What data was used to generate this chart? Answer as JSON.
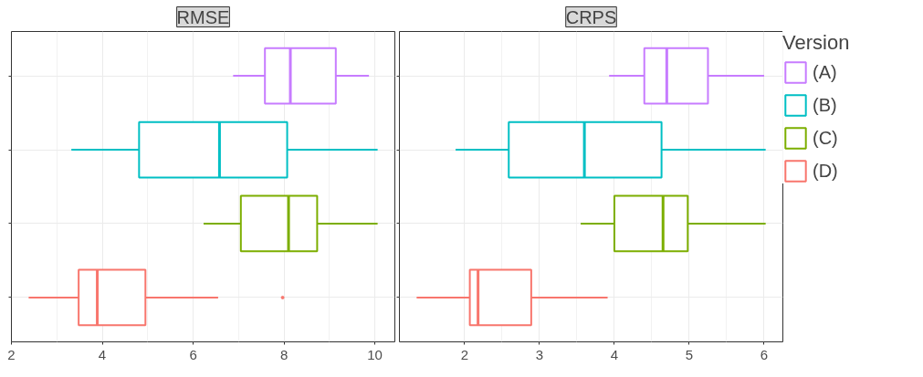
{
  "chart_data": [
    {
      "type": "box",
      "title": "RMSE",
      "orientation": "horizontal",
      "categories": [
        null,
        null,
        null,
        null
      ],
      "xlim": [
        2,
        10.44
      ],
      "xticks": [
        2,
        4,
        6,
        8,
        10
      ],
      "grid": true,
      "legend": false,
      "tick_labels": "x",
      "series": [
        {
          "color": "#c77cff",
          "boxes": [
            {
              "low": 6.88,
              "q1": 7.58,
              "median": 8.14,
              "q3": 9.14,
              "high": 9.87
            },
            null,
            null,
            null
          ]
        },
        {
          "color": "#00bfc4",
          "boxes": [
            null,
            {
              "low": 3.32,
              "q1": 4.81,
              "median": 6.58,
              "q3": 8.07,
              "high": 10.06
            },
            null,
            null
          ]
        },
        {
          "color": "#7cae00",
          "boxes": [
            null,
            null,
            {
              "low": 6.23,
              "q1": 7.05,
              "median": 8.1,
              "q3": 8.73,
              "high": 10.06
            },
            null
          ]
        },
        {
          "color": "#f8766d",
          "boxes": [
            null,
            null,
            null,
            {
              "low": 2.38,
              "q1": 3.48,
              "median": 3.89,
              "q3": 4.95,
              "high": 6.55,
              "outliers": [
                7.97
              ]
            }
          ]
        }
      ]
    },
    {
      "type": "box",
      "title": "CRPS",
      "orientation": "horizontal",
      "categories": [
        null,
        null,
        null,
        null
      ],
      "xlim": [
        1.13,
        6.25
      ],
      "xticks": [
        2,
        3,
        4,
        5,
        6
      ],
      "grid": true,
      "legend": "right",
      "legend_title": "Version",
      "tick_labels": "x",
      "series": [
        {
          "name": "(A)",
          "color": "#c77cff",
          "boxes": [
            {
              "low": 3.93,
              "q1": 4.4,
              "median": 4.7,
              "q3": 5.25,
              "high": 6.0
            },
            null,
            null,
            null
          ]
        },
        {
          "name": "(B)",
          "color": "#00bfc4",
          "boxes": [
            null,
            {
              "low": 1.88,
              "q1": 2.59,
              "median": 3.6,
              "q3": 4.63,
              "high": 6.02
            },
            null,
            null
          ]
        },
        {
          "name": "(C)",
          "color": "#7cae00",
          "boxes": [
            null,
            null,
            {
              "low": 3.55,
              "q1": 4.0,
              "median": 4.65,
              "q3": 4.98,
              "high": 6.02
            },
            null
          ]
        },
        {
          "name": "(D)",
          "color": "#f8766d",
          "boxes": [
            null,
            null,
            null,
            {
              "low": 1.36,
              "q1": 2.07,
              "median": 2.18,
              "q3": 2.89,
              "high": 3.91
            }
          ]
        }
      ]
    }
  ]
}
